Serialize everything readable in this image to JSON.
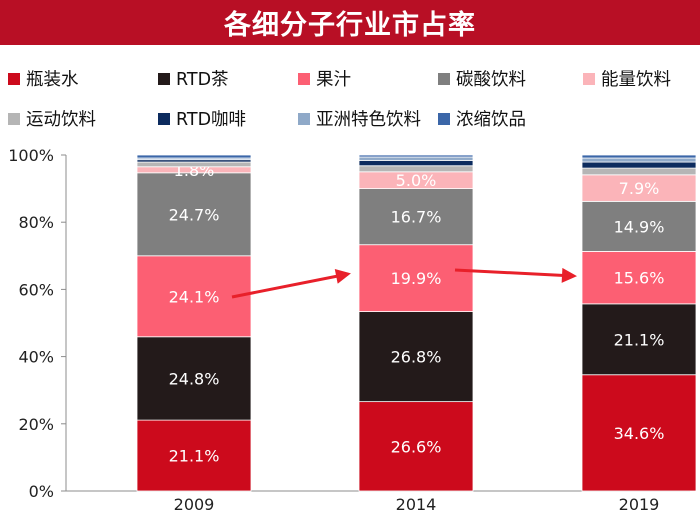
{
  "title": "各细分子行业市占率",
  "chart_data": {
    "type": "bar",
    "stacked": true,
    "categories": [
      "2009",
      "2014",
      "2019"
    ],
    "ylim": [
      0,
      100
    ],
    "y_ticks": [
      "0%",
      "20%",
      "40%",
      "60%",
      "80%",
      "100%"
    ],
    "grid": false,
    "legend_position": "top",
    "series": [
      {
        "name": "瓶装水",
        "color": "#cc0a1c",
        "values": [
          21.1,
          26.6,
          34.6
        ],
        "labels": [
          "21.1%",
          "26.6%",
          "34.6%"
        ]
      },
      {
        "name": "RTD茶",
        "color": "#231a1a",
        "values": [
          24.8,
          26.8,
          21.1
        ],
        "labels": [
          "24.8%",
          "26.8%",
          "21.1%"
        ]
      },
      {
        "name": "果汁",
        "color": "#fc5f73",
        "values": [
          24.1,
          19.9,
          15.6
        ],
        "labels": [
          "24.1%",
          "19.9%",
          "15.6%"
        ]
      },
      {
        "name": "碳酸饮料",
        "color": "#7f7f7f",
        "values": [
          24.7,
          16.7,
          14.9
        ],
        "labels": [
          "24.7%",
          "16.7%",
          "14.9%"
        ]
      },
      {
        "name": "能量饮料",
        "color": "#fbb4b9",
        "values": [
          1.8,
          5.0,
          7.9
        ],
        "labels": [
          "1.8%",
          "5.0%",
          "7.9%"
        ]
      },
      {
        "name": "运动饮料",
        "color": "#b5b5b5",
        "values": [
          1.4,
          1.8,
          2.0
        ],
        "labels": [
          "",
          "",
          ""
        ]
      },
      {
        "name": "RTD咖啡",
        "color": "#0c2b5e",
        "values": [
          0.7,
          1.6,
          1.8
        ],
        "labels": [
          "",
          "",
          ""
        ]
      },
      {
        "name": "亚洲特色饮料",
        "color": "#8fa9c8",
        "values": [
          0.5,
          1.0,
          1.2
        ],
        "labels": [
          "",
          "",
          ""
        ]
      },
      {
        "name": "浓缩饮品",
        "color": "#3b66a8",
        "values": [
          0.9,
          0.6,
          0.9
        ],
        "labels": [
          "",
          "",
          ""
        ]
      }
    ]
  }
}
